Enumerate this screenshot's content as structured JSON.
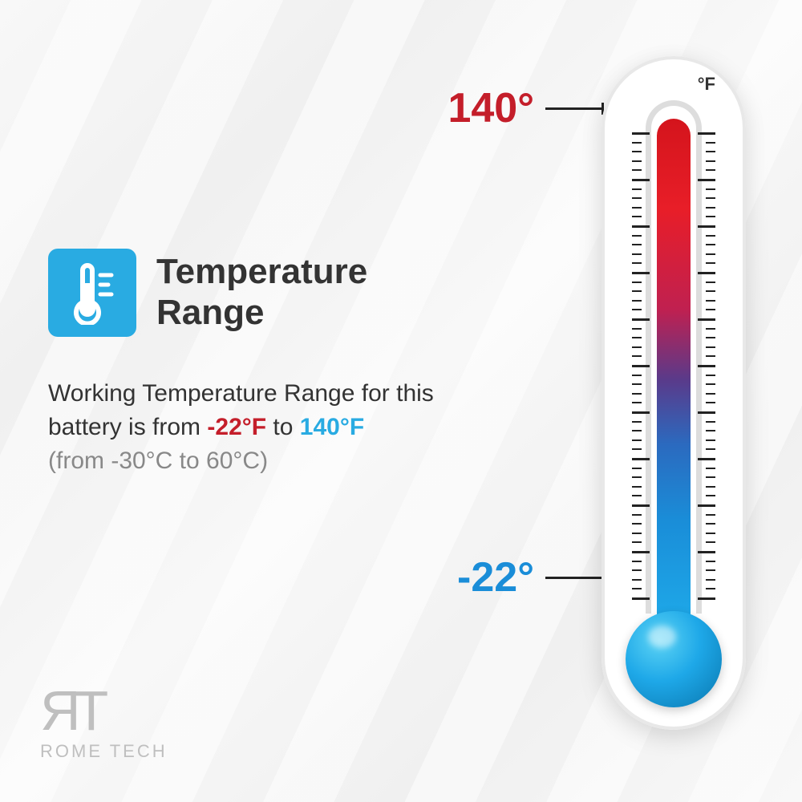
{
  "title": "Temperature\nRange",
  "icon": {
    "bg": "#29abe2",
    "name": "thermometer-icon"
  },
  "description": {
    "prefix": "Working Temperature Range for this battery is from ",
    "low_f": "-22°F",
    "mid": " to ",
    "high_f": "140°F",
    "celsius": "(from -30°C to 60°C)"
  },
  "thermometer": {
    "unit": "°F",
    "high_label": "140°",
    "low_label": "-22°",
    "gradient": [
      "#d4141c",
      "#e81e28",
      "#c02050",
      "#5a3a8a",
      "#2b6abf",
      "#1a8dd8",
      "#1ea8e8"
    ],
    "bulb_color": "#1ea8e8",
    "ticks": {
      "count": 50,
      "major_every": 5
    },
    "body_color": "#ffffff"
  },
  "colors": {
    "hot": "#c41e2a",
    "cold": "#1a8dd8",
    "icon_bg": "#29abe2",
    "text": "#333333",
    "muted": "#888888"
  },
  "logo": {
    "mark": "ЯT",
    "text": "ROME TECH"
  }
}
